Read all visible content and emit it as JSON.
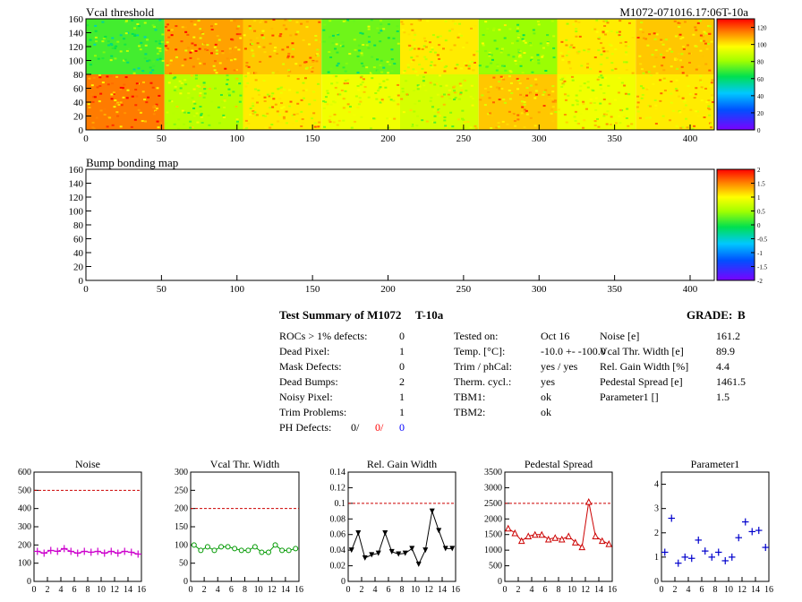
{
  "header_right": "M1072-071016.17:06T-10a",
  "colors": {
    "red": "#ff0000",
    "blue": "#0000ff",
    "magenta": "#cc00cc",
    "green": "#009900",
    "black": "#000000",
    "darkred": "#cc0000",
    "navy": "#0000cc",
    "dashed": "#cc0000"
  },
  "summary": {
    "title": "Test Summary of M1072",
    "tag": "T-10a",
    "grade_label": "GRADE:",
    "grade": "B",
    "col1": [
      {
        "label": "ROCs > 1% defects:",
        "value": "0"
      },
      {
        "label": "Dead Pixel:",
        "value": "1"
      },
      {
        "label": "Mask Defects:",
        "value": "0"
      },
      {
        "label": "Dead Bumps:",
        "value": "2"
      },
      {
        "label": "Noisy Pixel:",
        "value": "1"
      },
      {
        "label": "Trim Problems:",
        "value": "1"
      }
    ],
    "ph_label": "PH Defects:",
    "ph_values": [
      "0/",
      "0/",
      "0"
    ],
    "col2": [
      {
        "label": "Tested on:",
        "value": "Oct 16"
      },
      {
        "label": "Temp. [°C]:",
        "value": "-10.0 +- -100.0"
      },
      {
        "label": "Trim / phCal:",
        "value": "yes / yes"
      },
      {
        "label": "Therm. cycl.:",
        "value": "yes"
      },
      {
        "label": "TBM1:",
        "value": "ok"
      },
      {
        "label": "TBM2:",
        "value": "ok"
      }
    ],
    "col3": [
      {
        "label": "Noise [e]",
        "value": "161.2"
      },
      {
        "label": "Vcal Thr. Width [e]",
        "value": "89.9"
      },
      {
        "label": "Rel. Gain Width [%]",
        "value": "4.4"
      },
      {
        "label": "Pedestal Spread [e]",
        "value": "1461.5"
      },
      {
        "label": "Parameter1 []",
        "value": "1.5"
      }
    ]
  },
  "chart_data": [
    {
      "type": "heatmap",
      "title": "Vcal threshold",
      "xlim": [
        0,
        416
      ],
      "ylim": [
        0,
        160
      ],
      "xticks": [
        "0",
        "50",
        "100",
        "150",
        "200",
        "250",
        "300",
        "350",
        "400"
      ],
      "yticks": [
        "0",
        "20",
        "40",
        "60",
        "80",
        "100",
        "120",
        "140",
        "160"
      ],
      "zlim": [
        0,
        130
      ],
      "zticks": [
        "0",
        "20",
        "40",
        "60",
        "80",
        "100",
        "120"
      ],
      "roc_grid": {
        "columns": 8,
        "rows": 2
      },
      "roc_mean_thresholds": {
        "top": [
          70,
          110,
          105,
          75,
          100,
          80,
          100,
          105
        ],
        "bottom": [
          115,
          85,
          100,
          95,
          90,
          105,
          95,
          100
        ]
      }
    },
    {
      "type": "heatmap",
      "title": "Bump bonding map",
      "xlim": [
        0,
        416
      ],
      "ylim": [
        0,
        160
      ],
      "xticks": [
        "0",
        "50",
        "100",
        "150",
        "200",
        "250",
        "300",
        "350",
        "400"
      ],
      "yticks": [
        "0",
        "20",
        "40",
        "60",
        "80",
        "100",
        "120",
        "140",
        "160"
      ],
      "zlim": [
        -2,
        2
      ],
      "zticks": [
        "-2",
        "-1.5",
        "-1",
        "-0.5",
        "0",
        "0.5",
        "1",
        "1.5",
        "2"
      ]
    },
    {
      "type": "line",
      "title": "Noise",
      "color": "#cc00cc",
      "marker": "cross",
      "x": [
        0,
        1,
        2,
        3,
        4,
        5,
        6,
        7,
        8,
        9,
        10,
        11,
        12,
        13,
        14,
        15
      ],
      "y": [
        165,
        155,
        170,
        165,
        180,
        165,
        155,
        165,
        160,
        165,
        155,
        165,
        155,
        165,
        160,
        150
      ],
      "xlim": [
        0,
        16
      ],
      "ylim": [
        0,
        600
      ],
      "ref": 500,
      "xticks": [
        "0",
        "2",
        "4",
        "6",
        "8",
        "10",
        "12",
        "14",
        "16"
      ],
      "yticks": [
        "0",
        "100",
        "200",
        "300",
        "400",
        "500",
        "600"
      ]
    },
    {
      "type": "line",
      "title": "Vcal Thr. Width",
      "color": "#009900",
      "marker": "circle",
      "x": [
        0,
        1,
        2,
        3,
        4,
        5,
        6,
        7,
        8,
        9,
        10,
        11,
        12,
        13,
        14,
        15
      ],
      "y": [
        100,
        85,
        95,
        85,
        95,
        95,
        90,
        85,
        85,
        95,
        80,
        80,
        100,
        85,
        85,
        90
      ],
      "xlim": [
        0,
        16
      ],
      "ylim": [
        0,
        300
      ],
      "ref": 200,
      "xticks": [
        "0",
        "2",
        "4",
        "6",
        "8",
        "10",
        "12",
        "14",
        "16"
      ],
      "yticks": [
        "0",
        "50",
        "100",
        "150",
        "200",
        "250",
        "300"
      ]
    },
    {
      "type": "line",
      "title": "Rel. Gain Width",
      "color": "#000000",
      "marker": "tri-down",
      "x": [
        0,
        1,
        2,
        3,
        4,
        5,
        6,
        7,
        8,
        9,
        10,
        11,
        12,
        13,
        14,
        15
      ],
      "y": [
        0.04,
        0.062,
        0.03,
        0.034,
        0.036,
        0.062,
        0.038,
        0.035,
        0.036,
        0.042,
        0.022,
        0.04,
        0.09,
        0.065,
        0.042,
        0.042
      ],
      "xlim": [
        0,
        16
      ],
      "ylim": [
        0,
        0.14
      ],
      "ref": 0.1,
      "xticks": [
        "0",
        "2",
        "4",
        "6",
        "8",
        "10",
        "12",
        "14",
        "16"
      ],
      "yticks": [
        "0",
        "0.02",
        "0.04",
        "0.06",
        "0.08",
        "0.1",
        "0.12",
        "0.14"
      ]
    },
    {
      "type": "line",
      "title": "Pedestal Spread",
      "color": "#cc0000",
      "marker": "tri-up",
      "x": [
        0,
        1,
        2,
        3,
        4,
        5,
        6,
        7,
        8,
        9,
        10,
        11,
        12,
        13,
        14,
        15
      ],
      "y": [
        1700,
        1550,
        1300,
        1450,
        1500,
        1500,
        1350,
        1400,
        1350,
        1450,
        1250,
        1100,
        2550,
        1450,
        1300,
        1200
      ],
      "xlim": [
        0,
        16
      ],
      "ylim": [
        0,
        3500
      ],
      "ref": 2500,
      "xticks": [
        "0",
        "2",
        "4",
        "6",
        "8",
        "10",
        "12",
        "14",
        "16"
      ],
      "yticks": [
        "0",
        "500",
        "1000",
        "1500",
        "2000",
        "2500",
        "3000",
        "3500"
      ]
    },
    {
      "type": "scatter",
      "title": "Parameter1",
      "color": "#0000cc",
      "marker": "cross",
      "x": [
        0,
        1,
        2,
        3,
        4,
        5,
        6,
        7,
        8,
        9,
        10,
        11,
        12,
        13,
        14,
        15
      ],
      "y": [
        1.2,
        2.6,
        0.75,
        1.0,
        0.95,
        1.7,
        1.25,
        1.0,
        1.2,
        0.85,
        1.0,
        1.8,
        2.45,
        2.05,
        2.1,
        1.4
      ],
      "xlim": [
        0,
        16
      ],
      "ylim": [
        0,
        4.5
      ],
      "xticks": [
        "0",
        "2",
        "4",
        "6",
        "8",
        "10",
        "12",
        "14",
        "16"
      ],
      "yticks": [
        "0",
        "1",
        "2",
        "3",
        "4"
      ]
    }
  ]
}
